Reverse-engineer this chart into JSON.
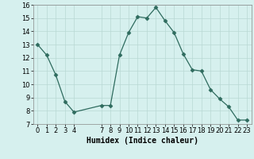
{
  "x": [
    0,
    1,
    2,
    3,
    4,
    7,
    8,
    9,
    10,
    11,
    12,
    13,
    14,
    15,
    16,
    17,
    18,
    19,
    20,
    21,
    22,
    23
  ],
  "y": [
    13.0,
    12.2,
    10.7,
    8.7,
    7.9,
    8.4,
    8.4,
    12.2,
    13.9,
    15.1,
    15.0,
    15.8,
    14.8,
    13.9,
    12.3,
    11.1,
    11.0,
    9.6,
    8.9,
    8.3,
    7.3,
    7.3
  ],
  "line_color": "#2e6b5e",
  "marker": "D",
  "marker_size": 2.5,
  "bg_color": "#d6f0ee",
  "grid_color": "#b8d8d4",
  "xlabel": "Humidex (Indice chaleur)",
  "ylim": [
    7,
    16
  ],
  "xlim": [
    -0.5,
    23.5
  ],
  "yticks": [
    7,
    8,
    9,
    10,
    11,
    12,
    13,
    14,
    15,
    16
  ],
  "xticks": [
    0,
    1,
    2,
    3,
    4,
    7,
    8,
    9,
    10,
    11,
    12,
    13,
    14,
    15,
    16,
    17,
    18,
    19,
    20,
    21,
    22,
    23
  ],
  "label_fontsize": 7,
  "tick_fontsize": 6
}
